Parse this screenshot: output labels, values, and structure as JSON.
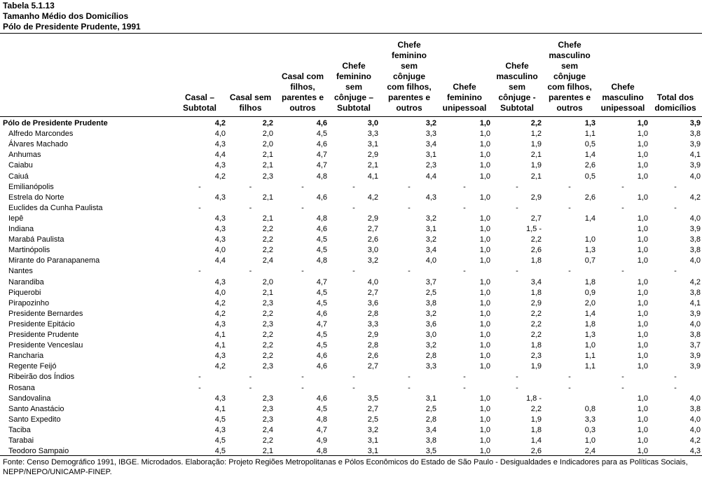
{
  "title": {
    "line1": "Tabela 5.1.13",
    "line2": "Tamanho Médio dos Domicílios",
    "line3": "Pólo de Presidente Prudente, 1991"
  },
  "columns": [
    "Casal –\nSubtotal",
    "Casal sem\nfilhos",
    "Casal com\nfilhos,\nparentes e\noutros",
    "Chefe\nfeminino\nsem\ncônjuge –\nSubtotal",
    "Chefe\nfeminino\nsem\ncônjuge\ncom filhos,\nparentes e\noutros",
    "Chefe\nfeminino\nunipessoal",
    "Chefe\nmasculino\nsem\ncônjuge -\nSubtotal",
    "Chefe\nmasculino\nsem\ncônjuge\ncom filhos,\nparentes e\noutros",
    "Chefe\nmasculino\nunipessoal",
    "Total dos\ndomicílios"
  ],
  "rows": [
    {
      "name": "Pólo de Presidente Prudente",
      "group": true,
      "values": [
        "4,2",
        "2,2",
        "4,6",
        "3,0",
        "3,2",
        "1,0",
        "2,2",
        "1,3",
        "1,0",
        "3,9"
      ]
    },
    {
      "name": "Alfredo Marcondes",
      "values": [
        "4,0",
        "2,0",
        "4,5",
        "3,3",
        "3,3",
        "1,0",
        "1,2",
        "1,1",
        "1,0",
        "3,8"
      ]
    },
    {
      "name": "Álvares Machado",
      "values": [
        "4,3",
        "2,0",
        "4,6",
        "3,1",
        "3,4",
        "1,0",
        "1,9",
        "0,5",
        "1,0",
        "3,9"
      ]
    },
    {
      "name": "Anhumas",
      "values": [
        "4,4",
        "2,1",
        "4,7",
        "2,9",
        "3,1",
        "1,0",
        "2,1",
        "1,4",
        "1,0",
        "4,1"
      ]
    },
    {
      "name": "Caiabu",
      "values": [
        "4,3",
        "2,1",
        "4,7",
        "2,1",
        "2,3",
        "1,0",
        "1,9",
        "2,6",
        "1,0",
        "3,9"
      ]
    },
    {
      "name": "Caiuá",
      "values": [
        "4,2",
        "2,3",
        "4,8",
        "4,1",
        "4,4",
        "1,0",
        "2,1",
        "0,5",
        "1,0",
        "4,0"
      ]
    },
    {
      "name": "Emilianópolis",
      "values": [
        "-",
        "-",
        "-",
        "-",
        "-",
        "-",
        "-",
        "-",
        "-",
        "-"
      ]
    },
    {
      "name": "Estrela do Norte",
      "values": [
        "4,3",
        "2,1",
        "4,6",
        "4,2",
        "4,3",
        "1,0",
        "2,9",
        "2,6",
        "1,0",
        "4,2"
      ]
    },
    {
      "name": "Euclides da Cunha Paulista",
      "values": [
        "-",
        "-",
        "-",
        "-",
        "-",
        "-",
        "-",
        "-",
        "-",
        "-"
      ]
    },
    {
      "name": "Iepê",
      "values": [
        "4,3",
        "2,1",
        "4,8",
        "2,9",
        "3,2",
        "1,0",
        "2,7",
        "1,4",
        "1,0",
        "4,0"
      ]
    },
    {
      "name": "Indiana",
      "values": [
        "4,3",
        "2,2",
        "4,6",
        "2,7",
        "3,1",
        "1,0",
        "1,5 -",
        "",
        "1,0",
        "3,9"
      ]
    },
    {
      "name": "Marabá Paulista",
      "values": [
        "4,3",
        "2,2",
        "4,5",
        "2,6",
        "3,2",
        "1,0",
        "2,2",
        "1,0",
        "1,0",
        "3,8"
      ]
    },
    {
      "name": "Martinópolis",
      "values": [
        "4,0",
        "2,2",
        "4,5",
        "3,0",
        "3,4",
        "1,0",
        "2,6",
        "1,3",
        "1,0",
        "3,8"
      ]
    },
    {
      "name": "Mirante do Paranapanema",
      "values": [
        "4,4",
        "2,4",
        "4,8",
        "3,2",
        "4,0",
        "1,0",
        "1,8",
        "0,7",
        "1,0",
        "4,0"
      ]
    },
    {
      "name": "Nantes",
      "values": [
        "-",
        "-",
        "-",
        "-",
        "-",
        "-",
        "-",
        "-",
        "-",
        "-"
      ]
    },
    {
      "name": "Narandiba",
      "values": [
        "4,3",
        "2,0",
        "4,7",
        "4,0",
        "3,7",
        "1,0",
        "3,4",
        "1,8",
        "1,0",
        "4,2"
      ]
    },
    {
      "name": "Piquerobi",
      "values": [
        "4,0",
        "2,1",
        "4,5",
        "2,7",
        "2,5",
        "1,0",
        "1,8",
        "0,9",
        "1,0",
        "3,8"
      ]
    },
    {
      "name": "Pirapozinho",
      "values": [
        "4,2",
        "2,3",
        "4,5",
        "3,6",
        "3,8",
        "1,0",
        "2,9",
        "2,0",
        "1,0",
        "4,1"
      ]
    },
    {
      "name": "Presidente Bernardes",
      "values": [
        "4,2",
        "2,2",
        "4,6",
        "2,8",
        "3,2",
        "1,0",
        "2,2",
        "1,4",
        "1,0",
        "3,9"
      ]
    },
    {
      "name": "Presidente Epitácio",
      "values": [
        "4,3",
        "2,3",
        "4,7",
        "3,3",
        "3,6",
        "1,0",
        "2,2",
        "1,8",
        "1,0",
        "4,0"
      ]
    },
    {
      "name": "Presidente Prudente",
      "values": [
        "4,1",
        "2,2",
        "4,5",
        "2,9",
        "3,0",
        "1,0",
        "2,2",
        "1,3",
        "1,0",
        "3,8"
      ]
    },
    {
      "name": "Presidente Venceslau",
      "values": [
        "4,1",
        "2,2",
        "4,5",
        "2,8",
        "3,2",
        "1,0",
        "1,8",
        "1,0",
        "1,0",
        "3,7"
      ]
    },
    {
      "name": "Rancharia",
      "values": [
        "4,3",
        "2,2",
        "4,6",
        "2,6",
        "2,8",
        "1,0",
        "2,3",
        "1,1",
        "1,0",
        "3,9"
      ]
    },
    {
      "name": "Regente Feijó",
      "values": [
        "4,2",
        "2,3",
        "4,6",
        "2,7",
        "3,3",
        "1,0",
        "1,9",
        "1,1",
        "1,0",
        "3,9"
      ]
    },
    {
      "name": "Ribeirão dos Índios",
      "values": [
        "-",
        "-",
        "-",
        "-",
        "-",
        "-",
        "-",
        "-",
        "-",
        "-"
      ]
    },
    {
      "name": "Rosana",
      "values": [
        "-",
        "-",
        "-",
        "-",
        "-",
        "-",
        "-",
        "-",
        "-",
        "-"
      ]
    },
    {
      "name": "Sandovalina",
      "values": [
        "4,3",
        "2,3",
        "4,6",
        "3,5",
        "3,1",
        "1,0",
        "1,8 -",
        "",
        "1,0",
        "4,0"
      ]
    },
    {
      "name": "Santo Anastácio",
      "values": [
        "4,1",
        "2,3",
        "4,5",
        "2,7",
        "2,5",
        "1,0",
        "2,2",
        "0,8",
        "1,0",
        "3,8"
      ]
    },
    {
      "name": "Santo Expedito",
      "values": [
        "4,5",
        "2,3",
        "4,8",
        "2,5",
        "2,8",
        "1,0",
        "1,9",
        "3,3",
        "1,0",
        "4,0"
      ]
    },
    {
      "name": "Taciba",
      "values": [
        "4,3",
        "2,4",
        "4,7",
        "3,2",
        "3,4",
        "1,0",
        "1,8",
        "0,3",
        "1,0",
        "4,0"
      ]
    },
    {
      "name": "Tarabai",
      "values": [
        "4,5",
        "2,2",
        "4,9",
        "3,1",
        "3,8",
        "1,0",
        "1,4",
        "1,0",
        "1,0",
        "4,2"
      ]
    },
    {
      "name": "Teodoro Sampaio",
      "values": [
        "4,5",
        "2,1",
        "4,8",
        "3,1",
        "3,5",
        "1,0",
        "2,6",
        "2,4",
        "1,0",
        "4,3"
      ]
    }
  ],
  "footnote": "Fonte: Censo Demográfico 1991, IBGE. Microdados. Elaboração: Projeto Regiões Metropolitanas e Pólos Econômicos do Estado de São Paulo - Desigualdades e Indicadores para as Políticas Sociais, NEPP/NEPO/UNICAMP-FINEP."
}
